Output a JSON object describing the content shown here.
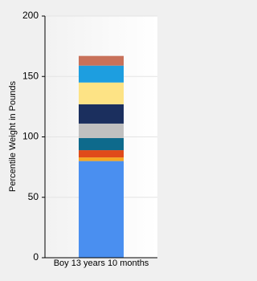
{
  "chart_data": {
    "type": "stacked-bar",
    "y_label": "Percentile Weight in Pounds",
    "categories": [
      "Boy 13 years 10 months"
    ],
    "series": [
      {
        "color": "#4a8ff0",
        "values": [
          80
        ]
      },
      {
        "color": "#f5a623",
        "values": [
          3
        ]
      },
      {
        "color": "#e04a1a",
        "values": [
          6
        ]
      },
      {
        "color": "#0e6a8c",
        "values": [
          10
        ]
      },
      {
        "color": "#c0c0c0",
        "values": [
          12
        ]
      },
      {
        "color": "#1b2f5e",
        "values": [
          16
        ]
      },
      {
        "color": "#fde385",
        "values": [
          18
        ]
      },
      {
        "color": "#1d9ee0",
        "values": [
          14
        ]
      },
      {
        "color": "#c8715a",
        "values": [
          8
        ]
      }
    ],
    "ylim": [
      0,
      200
    ],
    "yticks": [
      0,
      50,
      100,
      150,
      200
    ],
    "grid": true
  }
}
